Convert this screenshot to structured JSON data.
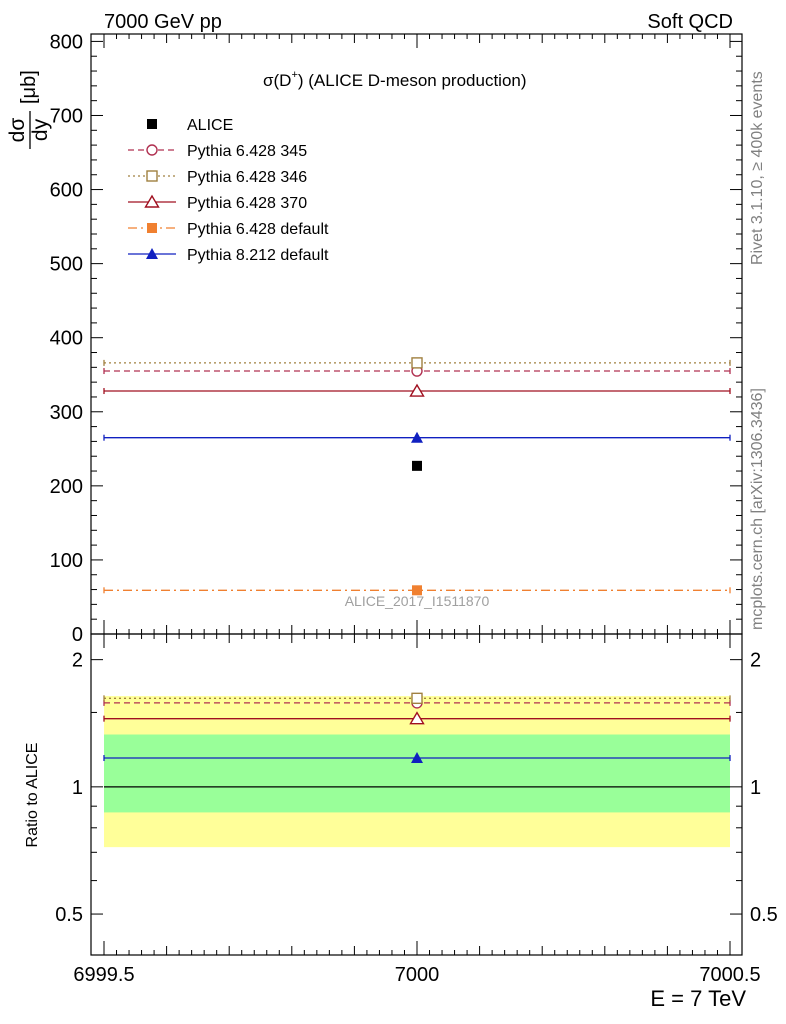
{
  "header": {
    "left": "7000 GeV pp",
    "right": "Soft QCD"
  },
  "side_labels": {
    "rivet": "Rivet 3.1.10, ≥ 400k events",
    "mcplots": "mcplots.cern.ch [arXiv:1306.3436]"
  },
  "chart_data": [
    {
      "type": "line",
      "panel": "main",
      "title": "σ(D⁺) (ALICE D-meson production)",
      "title_main": "σ(D",
      "title_sup": "+",
      "title_rest": ") (ALICE D-meson production)",
      "ylabel_num": "dσ",
      "ylabel_den": "dy",
      "ylabel_unit": "[μb]",
      "xlim": [
        6999.5,
        7000.5
      ],
      "ylim": [
        0,
        810
      ],
      "yticks": [
        0,
        100,
        200,
        300,
        400,
        500,
        600,
        700,
        800
      ],
      "yticks_labels": [
        "0",
        "100",
        "200",
        "300",
        "400",
        "500",
        "600",
        "700",
        "800"
      ],
      "watermark": "ALICE_2017_I1511870",
      "legend_position": "top-left",
      "series": [
        {
          "name": "ALICE",
          "x": 7000,
          "value": 227,
          "color": "#000000",
          "marker": "square-filled",
          "line": "none"
        },
        {
          "name": "Pythia 6.428 345",
          "x": 7000,
          "value": 355,
          "color": "#b03050",
          "marker": "circle-open",
          "line": "dashed"
        },
        {
          "name": "Pythia 6.428 346",
          "x": 7000,
          "value": 366,
          "color": "#a08040",
          "marker": "square-open",
          "line": "dotted"
        },
        {
          "name": "Pythia 6.428 370",
          "x": 7000,
          "value": 328,
          "color": "#a01020",
          "marker": "triangle-open",
          "line": "solid"
        },
        {
          "name": "Pythia 6.428 default",
          "x": 7000,
          "value": 59,
          "color": "#f08030",
          "marker": "square-filled",
          "line": "dashdot"
        },
        {
          "name": "Pythia 8.212 default",
          "x": 7000,
          "value": 265,
          "color": "#1020c0",
          "marker": "triangle-filled",
          "line": "solid"
        }
      ]
    },
    {
      "type": "line",
      "panel": "ratio",
      "ylabel": "Ratio to ALICE",
      "xlabel": "E = 7 TeV",
      "xlim": [
        6999.5,
        7000.5
      ],
      "ylim": [
        0.4,
        2.3
      ],
      "scale": "log",
      "xticks": [
        6999.5,
        7000,
        7000.5
      ],
      "xticks_labels": [
        "6999.5",
        "7000",
        "7000.5"
      ],
      "yticks": [
        0.5,
        1,
        2
      ],
      "yticks_labels": [
        "0.5",
        "1",
        "2"
      ],
      "bands": [
        {
          "name": "ALICE total uncertainty",
          "low": 0.72,
          "high": 1.64,
          "color": "#ffff99"
        },
        {
          "name": "ALICE statistical uncertainty",
          "low": 0.87,
          "high": 1.33,
          "color": "#99ff99"
        }
      ],
      "series": [
        {
          "name": "ALICE",
          "value": 1.0,
          "color": "#000000",
          "marker": "none",
          "line": "solid"
        },
        {
          "name": "Pythia 6.428 345",
          "value": 1.58,
          "color": "#b03050",
          "marker": "circle-open",
          "line": "dashed"
        },
        {
          "name": "Pythia 6.428 346",
          "value": 1.62,
          "color": "#a08040",
          "marker": "square-open",
          "line": "dotted"
        },
        {
          "name": "Pythia 6.428 370",
          "value": 1.45,
          "color": "#a01020",
          "marker": "triangle-open",
          "line": "solid"
        },
        {
          "name": "Pythia 8.212 default",
          "value": 1.17,
          "color": "#1020c0",
          "marker": "triangle-filled",
          "line": "solid"
        }
      ]
    }
  ]
}
